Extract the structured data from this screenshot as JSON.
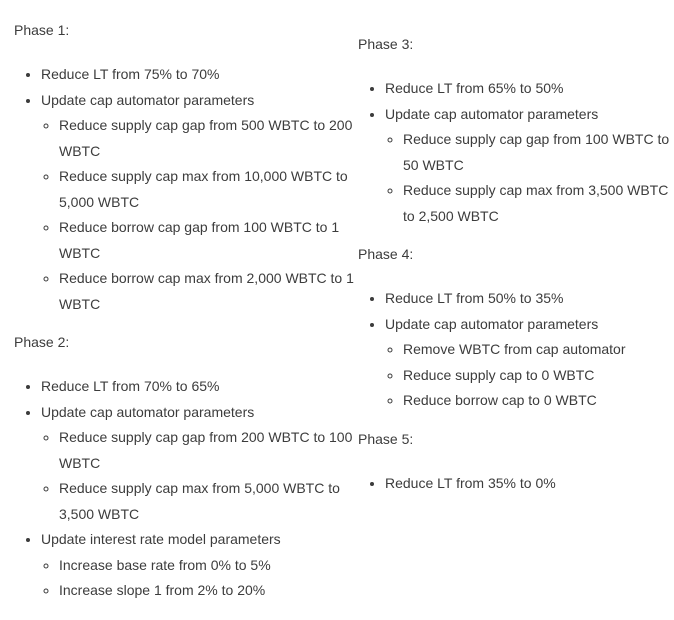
{
  "document": {
    "background": "#ffffff",
    "text_color": "#3c3c3c",
    "phases": [
      {
        "heading": "Phase 1:",
        "items": [
          {
            "text": "Reduce LT from 75% to 70%",
            "subitems": []
          },
          {
            "text": "Update cap automator parameters",
            "subitems": [
              "Reduce supply cap gap from 500 WBTC to 200 WBTC",
              "Reduce supply cap max from 10,000 WBTC to 5,000 WBTC",
              "Reduce borrow cap gap from 100 WBTC to 1 WBTC",
              "Reduce borrow cap max from 2,000 WBTC to 1 WBTC"
            ]
          }
        ]
      },
      {
        "heading": "Phase 2:",
        "items": [
          {
            "text": "Reduce LT from 70% to 65%",
            "subitems": []
          },
          {
            "text": "Update cap automator parameters",
            "subitems": [
              "Reduce supply cap gap from 200 WBTC to 100 WBTC",
              "Reduce supply cap max from 5,000 WBTC to 3,500 WBTC"
            ]
          },
          {
            "text": "Update interest rate model parameters",
            "subitems": [
              "Increase base rate from 0% to 5%",
              "Increase slope 1 from 2% to 20%"
            ]
          }
        ]
      },
      {
        "heading": "Phase 3:",
        "items": [
          {
            "text": "Reduce LT from 65% to 50%",
            "subitems": []
          },
          {
            "text": "Update cap automator parameters",
            "subitems": [
              "Reduce supply cap gap from 100 WBTC to 50 WBTC",
              "Reduce supply cap max from 3,500 WBTC to 2,500 WBTC"
            ]
          }
        ]
      },
      {
        "heading": "Phase 4:",
        "items": [
          {
            "text": "Reduce LT from 50% to 35%",
            "subitems": []
          },
          {
            "text": "Update cap automator parameters",
            "subitems": [
              "Remove WBTC from cap automator",
              "Reduce supply cap to 0 WBTC",
              "Reduce borrow cap to 0 WBTC"
            ]
          }
        ]
      },
      {
        "heading": "Phase 5:",
        "items": [
          {
            "text": "Reduce LT from 35% to 0%",
            "subitems": []
          }
        ]
      }
    ]
  }
}
